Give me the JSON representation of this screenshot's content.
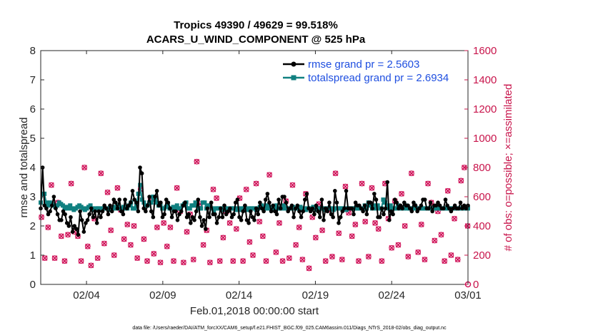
{
  "chart_data": {
    "type": "line",
    "title_line1": "Tropics 49390 / 49629 = 99.518%",
    "title_line2": "ACARS_U_WIND_COMPONENT @ 525 hPa",
    "xlabel": "Feb.01,2018 00:00:00 start",
    "ylabel_left": "rmse and totalspread",
    "ylabel_right": "# of obs: o=possible; ×=assimilated",
    "xlim": [
      0,
      28
    ],
    "ylim_left": [
      0,
      8
    ],
    "ylim_right": [
      0,
      1600
    ],
    "x_ticks": [
      {
        "value": 3,
        "label": "02/04"
      },
      {
        "value": 8,
        "label": "02/09"
      },
      {
        "value": 13,
        "label": "02/14"
      },
      {
        "value": 18,
        "label": "02/19"
      },
      {
        "value": 23,
        "label": "02/24"
      },
      {
        "value": 28,
        "label": "03/01"
      }
    ],
    "y_ticks_left": [
      "0",
      "1",
      "2",
      "3",
      "4",
      "5",
      "6",
      "7",
      "8"
    ],
    "y_ticks_right": [
      "0",
      "200",
      "400",
      "600",
      "800",
      "1000",
      "1200",
      "1400",
      "1600"
    ],
    "series": [
      {
        "name": "rmse",
        "legend": "rmse grand pr = 2.5603",
        "color": "#000000",
        "values": [
          2.6,
          4.0,
          2.7,
          2.6,
          2.4,
          2.5,
          2.7,
          3.0,
          2.6,
          2.4,
          2.2,
          2.2,
          2.5,
          2.4,
          2.1,
          2.0,
          2.3,
          1.8,
          2.0,
          1.9,
          1.7,
          2.5,
          2.2,
          1.8,
          2.1,
          2.2,
          2.4,
          2.6,
          2.3,
          2.5,
          2.1,
          2.5,
          2.3,
          2.5,
          2.7,
          2.6,
          2.4,
          2.7,
          2.5,
          2.9,
          2.8,
          2.6,
          2.9,
          2.5,
          2.4,
          2.9,
          2.6,
          2.7,
          2.8,
          3.2,
          2.9,
          2.8,
          2.5,
          4.0,
          3.8,
          2.6,
          2.5,
          2.7,
          3.0,
          2.5,
          2.3,
          3.0,
          3.2,
          2.7,
          2.8,
          2.3,
          2.4,
          2.9,
          2.8,
          2.6,
          2.3,
          2.5,
          2.5,
          2.2,
          2.4,
          2.5,
          2.7,
          2.8,
          2.3,
          2.4,
          2.1,
          2.3,
          2.2,
          2.5,
          2.9,
          2.3,
          2.0,
          2.2,
          1.9,
          2.6,
          2.3,
          2.8,
          2.4,
          2.4,
          2.1,
          2.3,
          2.6,
          2.3,
          2.7,
          2.4,
          2.5,
          2.6,
          2.3,
          2.4,
          2.8,
          2.9,
          2.3,
          2.2,
          2.5,
          2.7,
          2.2,
          2.1,
          2.5,
          2.3,
          2.2,
          2.6,
          2.4,
          2.8,
          2.6,
          2.5,
          2.9,
          3.1,
          2.8,
          2.5,
          2.7,
          2.5,
          2.4,
          2.9,
          2.6,
          3.0,
          3.0,
          2.8,
          2.5,
          2.6,
          2.7,
          2.3,
          2.6,
          2.7,
          2.5,
          2.3,
          2.5,
          2.9,
          3.1,
          2.6,
          2.5,
          2.6,
          2.4,
          2.7,
          2.5,
          2.3,
          2.9,
          2.2,
          2.6,
          2.5,
          2.8,
          2.4,
          2.3,
          3.2,
          2.8,
          2.1,
          2.3,
          2.5,
          2.6,
          3.2,
          2.6,
          2.6,
          2.6,
          2.4,
          2.8,
          2.7,
          2.7,
          2.6,
          2.5,
          2.7,
          2.4,
          2.8,
          2.8,
          2.6,
          3.1,
          2.9,
          2.3,
          2.3,
          2.6,
          2.4,
          2.6,
          3.5,
          2.2,
          2.5,
          2.4,
          2.9,
          2.8,
          2.6,
          2.7,
          2.6,
          2.8,
          2.7,
          2.7,
          2.6,
          2.5,
          2.8,
          2.7,
          2.5,
          2.6,
          2.7,
          2.9,
          2.9,
          2.6,
          2.6,
          2.8,
          2.5,
          2.7,
          2.7,
          2.8,
          2.7,
          2.6,
          2.6,
          2.9,
          2.7,
          2.6,
          2.5,
          2.6,
          2.7,
          2.6,
          2.6,
          2.8,
          2.6,
          2.7,
          2.6,
          2.7
        ]
      },
      {
        "name": "totalspread",
        "legend": "totalspread grand pr = 2.6934",
        "color": "#108080",
        "values": [
          2.8,
          3.1,
          3.1,
          2.8,
          2.7,
          2.8,
          2.75,
          2.7,
          2.65,
          2.7,
          2.8,
          2.75,
          2.7,
          2.6,
          2.65,
          2.6,
          2.7,
          2.6,
          2.55,
          2.6,
          2.65,
          2.7,
          2.65,
          2.6,
          2.55,
          2.6,
          2.65,
          2.7,
          2.6,
          2.55,
          2.6,
          2.6,
          2.6,
          2.55,
          2.6,
          2.6,
          2.6,
          2.55,
          2.6,
          2.6,
          2.65,
          2.6,
          2.7,
          2.6,
          2.6,
          2.65,
          2.6,
          2.6,
          2.7,
          2.8,
          2.6,
          2.6,
          2.7,
          3.1,
          3.4,
          2.9,
          2.8,
          2.7,
          2.7,
          2.8,
          2.8,
          3.0,
          2.9,
          2.8,
          2.7,
          2.7,
          2.6,
          2.6,
          2.65,
          2.7,
          2.6,
          2.6,
          2.65,
          2.6,
          2.7,
          2.6,
          2.6,
          2.7,
          2.75,
          2.8,
          2.6,
          2.6,
          2.7,
          2.7,
          2.8,
          2.7,
          2.6,
          2.6,
          2.8,
          2.8,
          2.6,
          2.7,
          2.7,
          2.6,
          2.5,
          2.6,
          2.6,
          2.6,
          2.6,
          2.55,
          2.6,
          2.6,
          2.55,
          2.6,
          2.6,
          2.6,
          2.55,
          2.6,
          2.55,
          2.6,
          2.6,
          2.6,
          2.55,
          2.6,
          2.6,
          2.6,
          2.6,
          2.55,
          2.6,
          2.65,
          2.7,
          2.6,
          2.6,
          2.7,
          2.6,
          2.6,
          2.65,
          2.6,
          2.7,
          2.6,
          2.6,
          2.6,
          2.7,
          2.6,
          2.6,
          2.6,
          2.6,
          2.65,
          2.6,
          2.6,
          2.6,
          2.65,
          2.6,
          2.6,
          2.55,
          2.6,
          2.6,
          2.6,
          2.65,
          2.6,
          2.55,
          2.6,
          2.6,
          2.6,
          2.55,
          2.6,
          2.6,
          2.6,
          2.6,
          2.55,
          2.6,
          2.6,
          2.6,
          2.6,
          2.6,
          2.6,
          2.55,
          2.6,
          2.6,
          2.6,
          2.6,
          2.6,
          2.6,
          2.6,
          2.6,
          2.6,
          2.7,
          2.6,
          2.8,
          2.7,
          2.6,
          2.7,
          2.6,
          2.7,
          2.6,
          2.6,
          2.9,
          2.8,
          2.7,
          2.6,
          2.7,
          2.6,
          2.6,
          2.6,
          2.7,
          2.6,
          2.6,
          2.6,
          2.7,
          2.6,
          2.6,
          2.6,
          2.6,
          2.7,
          2.6,
          2.6,
          2.6,
          2.6,
          2.6,
          2.6,
          2.6,
          2.6,
          2.6,
          2.6,
          2.6,
          2.6,
          2.6,
          2.6,
          2.6,
          2.6,
          2.6,
          2.6,
          2.6,
          2.6,
          2.6,
          2.6,
          2.6,
          2.6,
          2.6,
          2.6,
          2.6,
          2.6,
          2.6
        ]
      }
    ],
    "obs_counts": {
      "axis": "right",
      "color": "#d0145a",
      "values": [
        460,
        180,
        390,
        680,
        180,
        560,
        330,
        160,
        340,
        690,
        360,
        330,
        160,
        800,
        260,
        130,
        450,
        180,
        760,
        280,
        630,
        370,
        200,
        660,
        510,
        310,
        410,
        270,
        400,
        180,
        650,
        310,
        160,
        590,
        210,
        390,
        150,
        420,
        260,
        390,
        160,
        660,
        500,
        150,
        360,
        480,
        170,
        840,
        550,
        270,
        370,
        150,
        650,
        590,
        160,
        320,
        500,
        420,
        160,
        380,
        590,
        160,
        650,
        290,
        200,
        690,
        430,
        330,
        160,
        750,
        520,
        220,
        420,
        160,
        570,
        180,
        680,
        270,
        390,
        170,
        620,
        110,
        460,
        320,
        550,
        370,
        160,
        510,
        190,
        760,
        350,
        170,
        670,
        490,
        330,
        410,
        160,
        690,
        430,
        190,
        660,
        420,
        380,
        160,
        690,
        450,
        250,
        570,
        270,
        620,
        400,
        190,
        760,
        530,
        220,
        410,
        170,
        690,
        560,
        300,
        500,
        340,
        160,
        640,
        200,
        450,
        170,
        710,
        800,
        400
      ],
      "x_step": 0.2165
    },
    "legend_position": "top-right"
  },
  "footer": {
    "data_file": "data file: /Users/raeder/DAI/ATM_forcXX/CAM6_setup/f.e21.FHIST_BGC.f09_025.CAM6assim.011/Diags_NTrS_2018-02/obs_diag_output.nc"
  }
}
